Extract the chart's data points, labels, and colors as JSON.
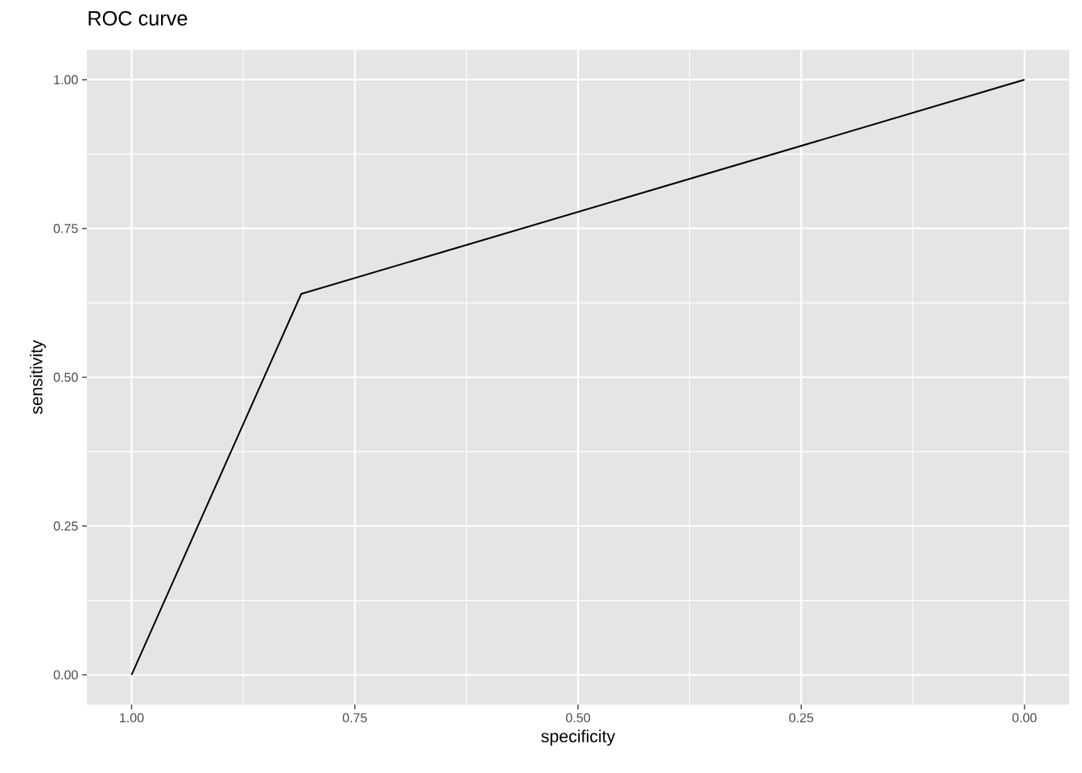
{
  "chart_data": {
    "type": "line",
    "title": "ROC curve",
    "xlabel": "specificity",
    "ylabel": "sensitivity",
    "x": [
      1,
      0.81,
      0
    ],
    "series": [
      {
        "color": "#000000",
        "values": [
          0,
          0.64,
          1
        ]
      }
    ],
    "xlim": [
      1.05,
      -0.05
    ],
    "ylim": [
      -0.05,
      1.05
    ],
    "xticks": [
      {
        "value": 1,
        "label": "1.00"
      },
      {
        "value": 0.75,
        "label": "0.75"
      },
      {
        "value": 0.5,
        "label": "0.50"
      },
      {
        "value": 0.25,
        "label": "0.25"
      },
      {
        "value": 0,
        "label": "0.00"
      }
    ],
    "yticks": [
      {
        "value": 0,
        "label": "0.00"
      },
      {
        "value": 0.25,
        "label": "0.25"
      },
      {
        "value": 0.5,
        "label": "0.50"
      },
      {
        "value": 0.75,
        "label": "0.75"
      },
      {
        "value": 1,
        "label": "1.00"
      }
    ],
    "grid": true
  }
}
